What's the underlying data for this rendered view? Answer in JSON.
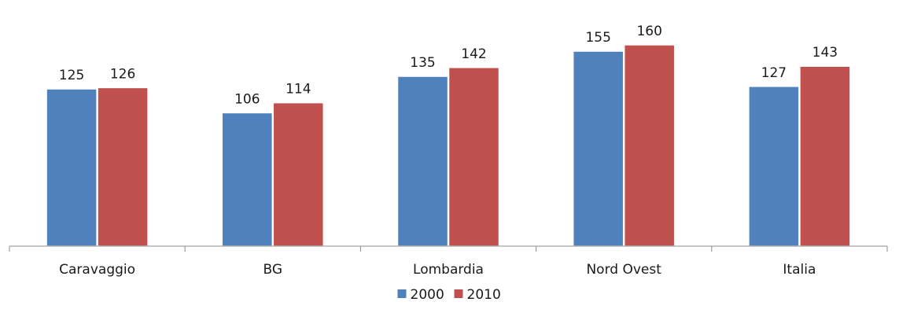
{
  "chart_data": {
    "type": "bar",
    "categories": [
      "Caravaggio",
      "BG",
      "Lombardia",
      "Nord Ovest",
      "Italia"
    ],
    "series": [
      {
        "name": "2000",
        "values": [
          125,
          106,
          135,
          155,
          127
        ],
        "color": "#4F81BD"
      },
      {
        "name": "2010",
        "values": [
          126,
          114,
          142,
          160,
          143
        ],
        "color": "#C0504D"
      }
    ],
    "ylim": [
      0,
      175
    ],
    "grid": false,
    "show_data_labels": true,
    "legend_position": "bottom"
  }
}
